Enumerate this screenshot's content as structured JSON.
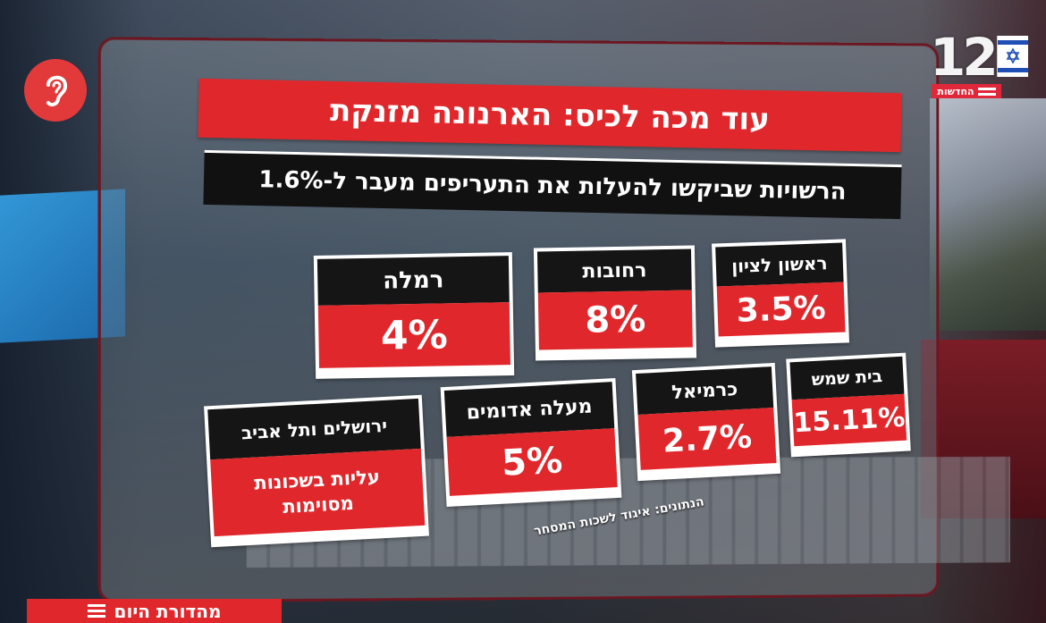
{
  "channel": {
    "number": "12",
    "label": "החדשות"
  },
  "headline": "עוד מכה לכיס: הארנונה מזנקת",
  "subheadline": "הרשויות שביקשו להעלות את התעריפים מעבר ל-1.6%",
  "cards": [
    {
      "city": "ראשון לציון",
      "value": "3.5%"
    },
    {
      "city": "רחובות",
      "value": "8%"
    },
    {
      "city": "רמלה",
      "value": "4%"
    },
    {
      "city": "בית שמש",
      "value": "15.11%"
    },
    {
      "city": "כרמיאל",
      "value": "2.7%"
    },
    {
      "city": "מעלה אדומים",
      "value": "5%"
    },
    {
      "city": "ירושלים ותל אביב",
      "note_line1": "עליות בשכונות",
      "note_line2": "מסוימות"
    }
  ],
  "source": "הנתונים: איגוד לשכות המסחר",
  "bottom_bar": "מהדורת היום",
  "colors": {
    "accent_red": "#e0282c",
    "dark": "#151515"
  },
  "icons": {
    "ear": "ear-icon",
    "menu": "hamburger-icon",
    "flag": "israel-flag-icon"
  }
}
